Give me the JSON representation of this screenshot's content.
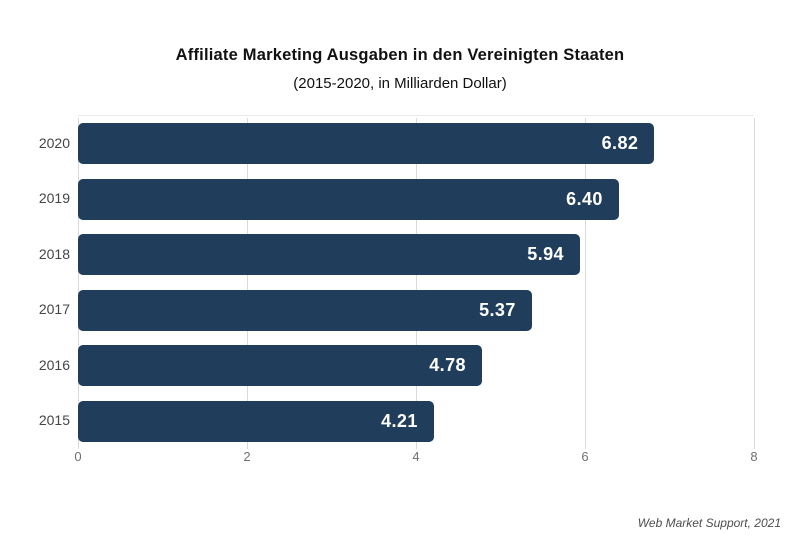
{
  "header": {
    "title": "Affiliate Marketing Ausgaben in den Vereinigten Staaten",
    "subtitle": "(2015-2020, in Milliarden Dollar)"
  },
  "source_note": "Web Market Support, 2021",
  "colors": {
    "bar": "#203d5c",
    "bar_label": "#ffffff",
    "grid": "#d9d9d9",
    "plot_top_border": "#ececec",
    "year_label": "#454545",
    "tick_label": "#707070",
    "title": "#111111",
    "source": "#4d4d4d"
  },
  "chart_data": {
    "type": "bar",
    "orientation": "horizontal",
    "title": "Affiliate Marketing Ausgaben in den Vereinigten Staaten",
    "subtitle": "(2015-2020, in Milliarden Dollar)",
    "categories": [
      "2020",
      "2019",
      "2018",
      "2017",
      "2016",
      "2015"
    ],
    "values": [
      6.82,
      6.4,
      5.94,
      5.37,
      4.78,
      4.21
    ],
    "value_labels": [
      "6.82",
      "6.40",
      "5.94",
      "5.37",
      "4.78",
      "4.21"
    ],
    "xlabel": "",
    "ylabel": "",
    "xlim": [
      0,
      8
    ],
    "xticks": [
      "0",
      "2",
      "4",
      "6",
      "8"
    ],
    "grid": "vertical-only",
    "legend": "none",
    "source": "Web Market Support, 2021"
  }
}
